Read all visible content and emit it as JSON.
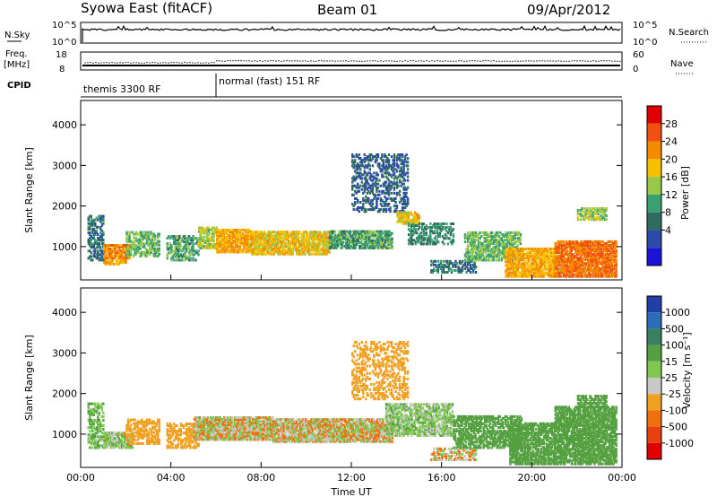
{
  "header": {
    "title": "Syowa East (fitACF)",
    "beam": "Beam 01",
    "date": "09/Apr/2012"
  },
  "aux_panels": {
    "nsky_label": "N.Sky",
    "nsky_ticks": [
      "10^5",
      "10^0"
    ],
    "nsearch_label": "N.Search",
    "nsearch_ticks": [
      "10^5",
      "10^0"
    ],
    "freq_label_line1": "Freq.",
    "freq_label_line2": "[MHz]",
    "freq_ticks": [
      "18",
      "8"
    ],
    "nave_label": "Nave",
    "nave_ticks": [
      "60",
      "0"
    ],
    "cpid_label": "CPID",
    "cpid_modes": [
      {
        "label": "themis 3300 RF",
        "start_hour": 0
      },
      {
        "label": "normal (fast) 151 RF",
        "start_hour": 6
      }
    ]
  },
  "colorbars": {
    "power": {
      "label": "Power [dB]",
      "ticks": [
        "28",
        "24",
        "20",
        "16",
        "12",
        "8",
        "4"
      ],
      "colors": [
        "#e00000",
        "#f05010",
        "#f38a00",
        "#f4c000",
        "#97c84a",
        "#3aa070",
        "#2d6c5e",
        "#2c4aa8",
        "#1a14d8"
      ]
    },
    "velocity": {
      "label": "Velocity [m s⁻¹]",
      "ticks": [
        "1000",
        "500",
        "100",
        "15",
        "25",
        "-25",
        "-100",
        "-500",
        "-1000"
      ],
      "colors": [
        "#2040a8",
        "#2d6cb8",
        "#3a8060",
        "#55a040",
        "#7ec850",
        "#c8c8c4",
        "#f0a020",
        "#f07010",
        "#e84010",
        "#e00000"
      ]
    }
  },
  "axes": {
    "ylabel": "Slant Range [km]",
    "xlabel": "Time UT",
    "y_ticks": [
      "4000",
      "3000",
      "2000",
      "1000"
    ],
    "x_ticks": [
      "00:00",
      "04:00",
      "08:00",
      "12:00",
      "16:00",
      "20:00",
      "00:00"
    ]
  },
  "chart_data": [
    {
      "type": "heatmap",
      "name": "power",
      "title": "",
      "xlabel": "Time UT",
      "ylabel": "Slant Range [km]",
      "xlim": [
        0,
        24
      ],
      "ylim": [
        180,
        4600
      ],
      "x_tick_hours": [
        0,
        4,
        8,
        12,
        16,
        20,
        24
      ],
      "y_tick_values": [
        1000,
        2000,
        3000,
        4000
      ],
      "colorbar": {
        "label": "Power [dB]",
        "range": [
          0,
          32
        ]
      },
      "regions": [
        {
          "t0": 0.3,
          "t1": 1.0,
          "r0": 700,
          "r1": 1800,
          "v": 8,
          "d": 0.5
        },
        {
          "t0": 1.0,
          "t1": 2.2,
          "r0": 750,
          "r1": 1100,
          "v": 24,
          "d": 0.75
        },
        {
          "t0": 1.0,
          "t1": 2.0,
          "r0": 600,
          "r1": 720,
          "v": 22,
          "d": 0.6
        },
        {
          "t0": 2.0,
          "t1": 3.5,
          "r0": 800,
          "r1": 1400,
          "v": 14,
          "d": 0.55
        },
        {
          "t0": 3.8,
          "t1": 5.2,
          "r0": 700,
          "r1": 1300,
          "v": 12,
          "d": 0.5
        },
        {
          "t0": 5.2,
          "t1": 6.0,
          "r0": 1000,
          "r1": 1500,
          "v": 16,
          "d": 0.6
        },
        {
          "t0": 6.0,
          "t1": 7.5,
          "r0": 900,
          "r1": 1450,
          "v": 22,
          "d": 0.8
        },
        {
          "t0": 7.5,
          "t1": 11.0,
          "r0": 850,
          "r1": 1400,
          "v": 20,
          "d": 0.75
        },
        {
          "t0": 11.0,
          "t1": 13.8,
          "r0": 1000,
          "r1": 1450,
          "v": 12,
          "d": 0.7
        },
        {
          "t0": 12.0,
          "t1": 14.5,
          "r0": 1900,
          "r1": 3300,
          "v": 6,
          "d": 0.35
        },
        {
          "t0": 14.0,
          "t1": 15.0,
          "r0": 1600,
          "r1": 1900,
          "v": 20,
          "d": 0.7
        },
        {
          "t0": 14.5,
          "t1": 16.5,
          "r0": 1100,
          "r1": 1600,
          "v": 10,
          "d": 0.45
        },
        {
          "t0": 15.5,
          "t1": 17.5,
          "r0": 400,
          "r1": 700,
          "v": 8,
          "d": 0.5
        },
        {
          "t0": 17.0,
          "t1": 19.5,
          "r0": 700,
          "r1": 1400,
          "v": 14,
          "d": 0.6
        },
        {
          "t0": 18.8,
          "t1": 21.0,
          "r0": 300,
          "r1": 1000,
          "v": 22,
          "d": 0.75
        },
        {
          "t0": 21.0,
          "t1": 23.7,
          "r0": 300,
          "r1": 1200,
          "v": 26,
          "d": 0.8
        },
        {
          "t0": 22.0,
          "t1": 23.3,
          "r0": 1700,
          "r1": 2000,
          "v": 16,
          "d": 0.6
        }
      ]
    },
    {
      "type": "heatmap",
      "name": "velocity",
      "title": "",
      "xlabel": "Time UT",
      "ylabel": "Slant Range [km]",
      "xlim": [
        0,
        24
      ],
      "ylim": [
        180,
        4600
      ],
      "x_tick_hours": [
        0,
        4,
        8,
        12,
        16,
        20,
        24
      ],
      "y_tick_values": [
        1000,
        2000,
        3000,
        4000
      ],
      "colorbar": {
        "label": "Velocity [m s⁻¹]",
        "range": [
          -1000,
          1000
        ]
      },
      "regions": [
        {
          "t0": 0.3,
          "t1": 1.0,
          "r0": 700,
          "r1": 1800,
          "v": 100,
          "d": 0.5
        },
        {
          "t0": 1.0,
          "t1": 2.3,
          "r0": 700,
          "r1": 1100,
          "v": 50,
          "d": 0.7
        },
        {
          "t0": 2.0,
          "t1": 3.5,
          "r0": 800,
          "r1": 1400,
          "v": -200,
          "d": 0.55
        },
        {
          "t0": 3.8,
          "t1": 5.2,
          "r0": 700,
          "r1": 1300,
          "v": -200,
          "d": 0.5
        },
        {
          "t0": 5.0,
          "t1": 8.5,
          "r0": 900,
          "r1": 1450,
          "v": 0,
          "d": 0.85
        },
        {
          "t0": 8.5,
          "t1": 13.8,
          "r0": 850,
          "r1": 1400,
          "v": 0,
          "d": 0.8
        },
        {
          "t0": 12.0,
          "t1": 14.5,
          "r0": 1900,
          "r1": 3300,
          "v": -200,
          "d": 0.35
        },
        {
          "t0": 13.5,
          "t1": 16.5,
          "r0": 1000,
          "r1": 1800,
          "v": 60,
          "d": 0.65
        },
        {
          "t0": 15.5,
          "t1": 17.5,
          "r0": 400,
          "r1": 700,
          "v": 0,
          "d": 0.5
        },
        {
          "t0": 16.5,
          "t1": 19.5,
          "r0": 700,
          "r1": 1500,
          "v": 200,
          "d": 0.6
        },
        {
          "t0": 19.0,
          "t1": 21.0,
          "r0": 300,
          "r1": 1300,
          "v": 300,
          "d": 0.7
        },
        {
          "t0": 21.0,
          "t1": 23.7,
          "r0": 300,
          "r1": 1700,
          "v": 300,
          "d": 0.75
        },
        {
          "t0": 22.0,
          "t1": 23.3,
          "r0": 1700,
          "r1": 2000,
          "v": 200,
          "d": 0.6
        }
      ]
    }
  ]
}
